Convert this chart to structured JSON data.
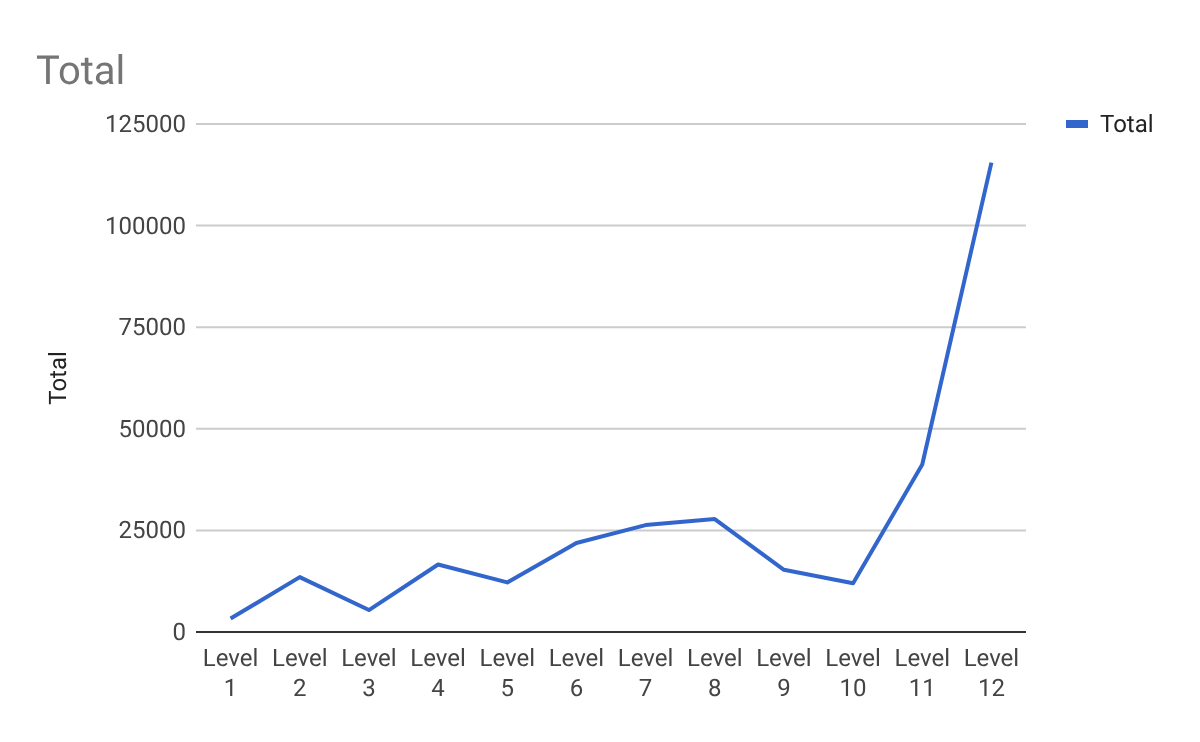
{
  "chart_data": {
    "type": "line",
    "title": "Total",
    "ylabel": "Total",
    "categories": [
      "Level 1",
      "Level 2",
      "Level 3",
      "Level 4",
      "Level 5",
      "Level 6",
      "Level 7",
      "Level 8",
      "Level 9",
      "Level 10",
      "Level 11",
      "Level 12"
    ],
    "series": [
      {
        "name": "Total",
        "color": "#3366cc",
        "values": [
          3300,
          13500,
          5400,
          16600,
          12200,
          21900,
          26300,
          27800,
          15300,
          12000,
          41200,
          115500
        ]
      }
    ],
    "ylim": [
      0,
      125000
    ],
    "yticks": [
      0,
      25000,
      50000,
      75000,
      100000,
      125000
    ],
    "grid": "y",
    "legend": "right",
    "marker": "none",
    "line_style": "solid"
  }
}
